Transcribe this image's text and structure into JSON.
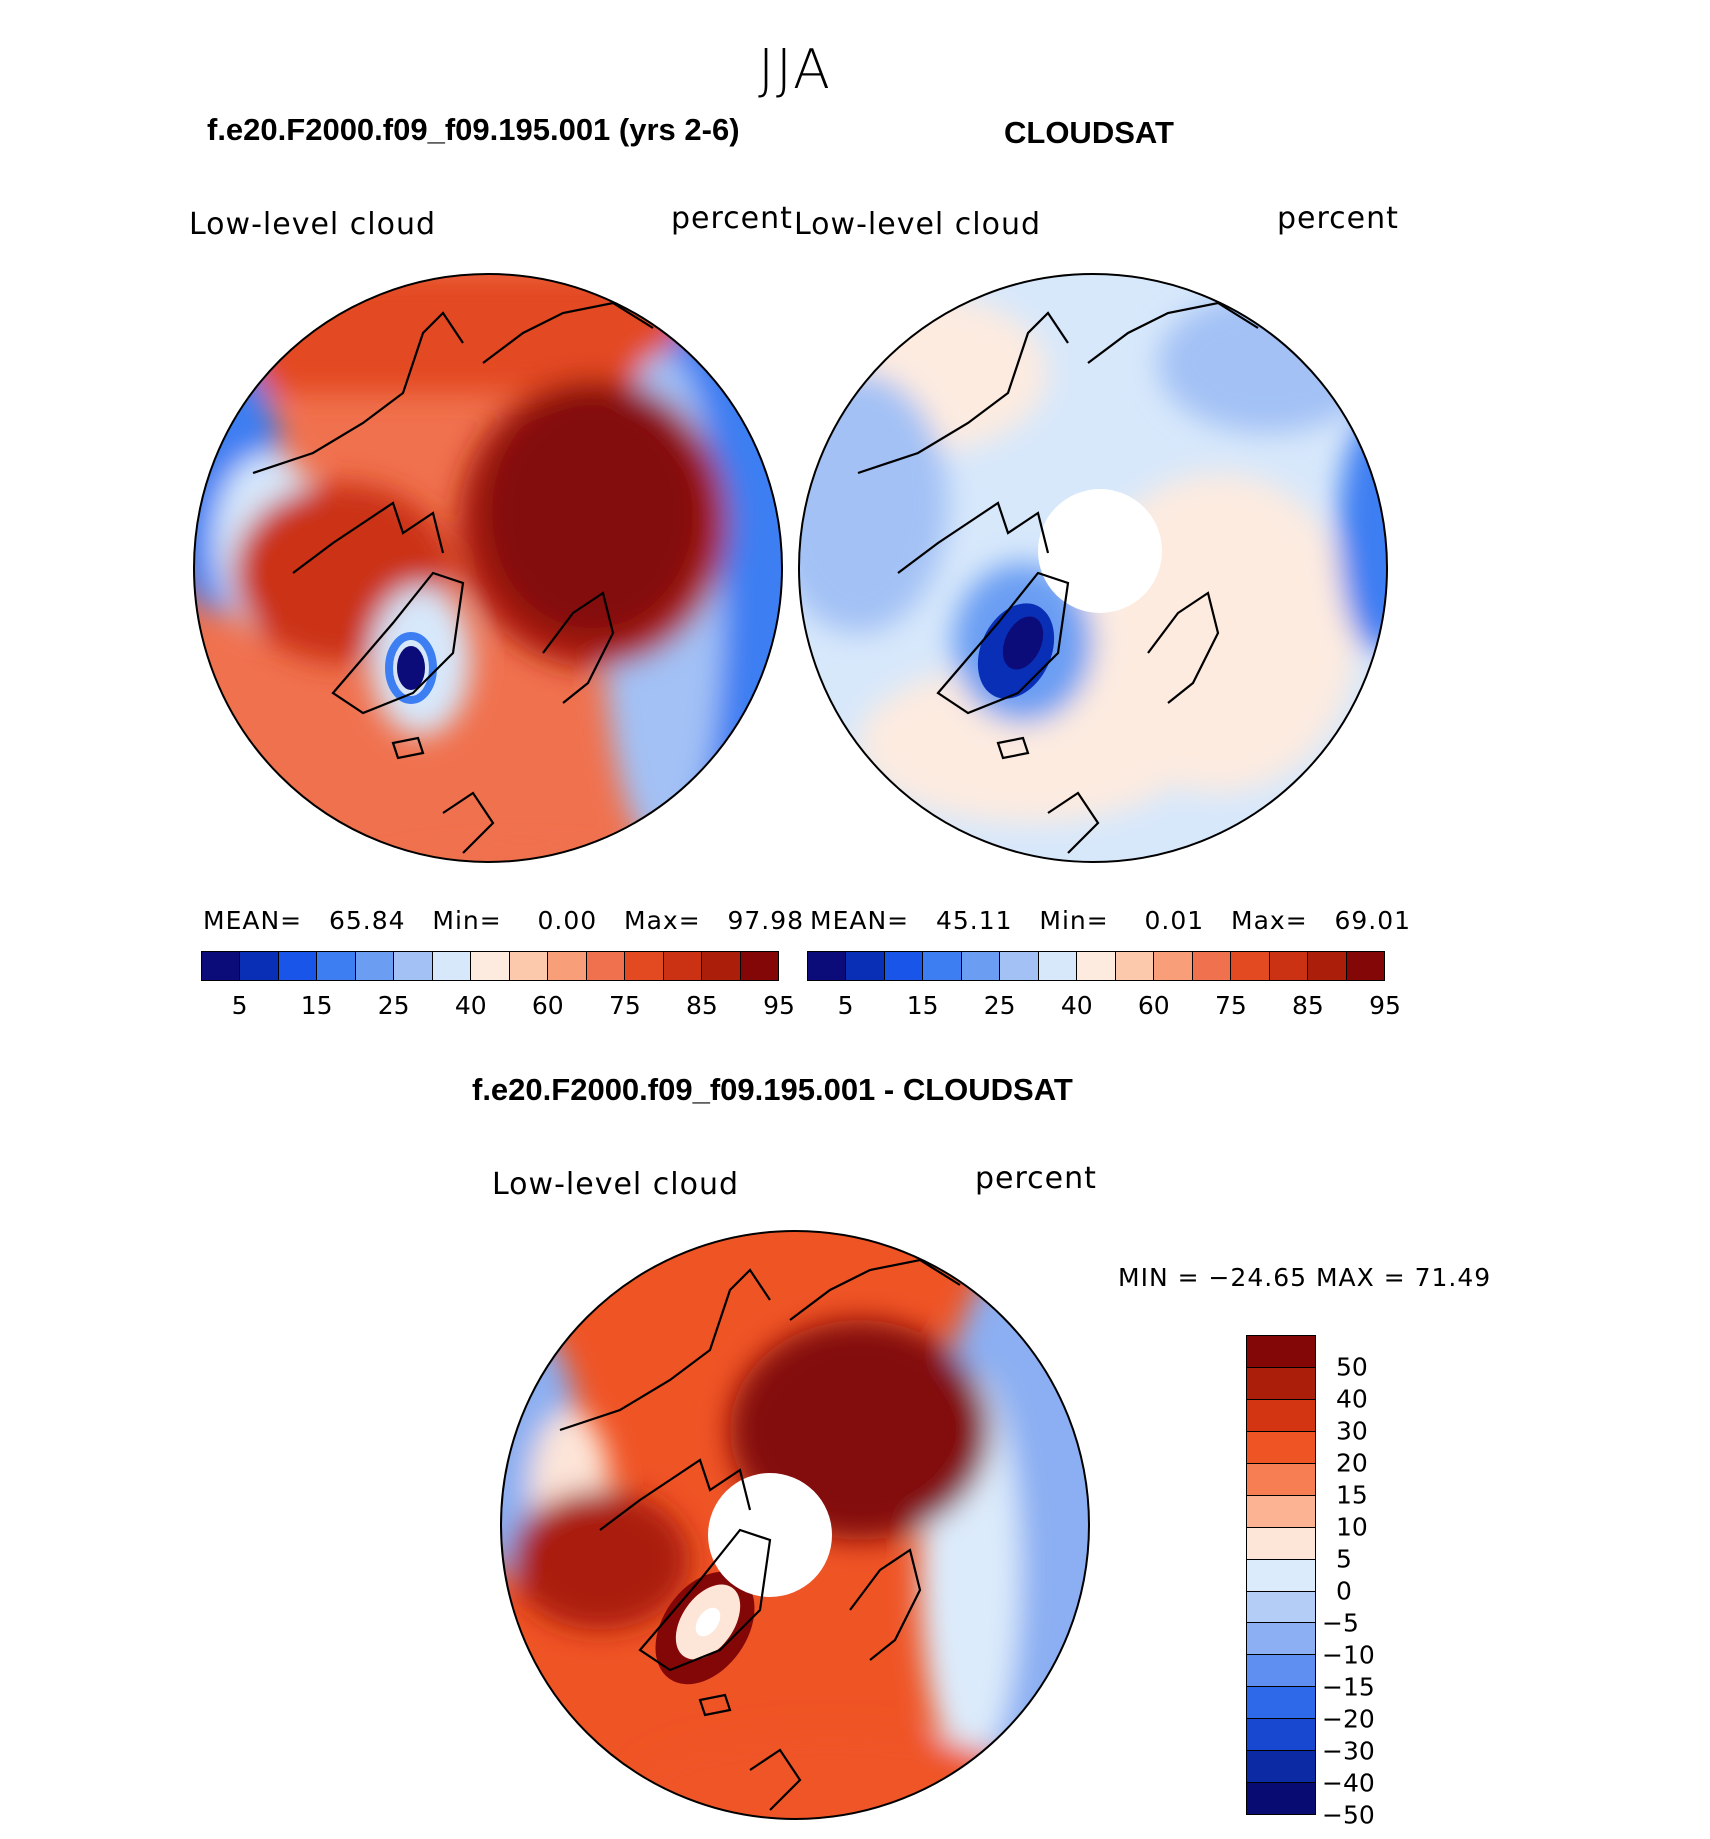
{
  "season": "JJA",
  "colors": {
    "abs_scale": [
      "#0b0b7a",
      "#0a2fb7",
      "#1855e8",
      "#3d7ef2",
      "#6b9ef3",
      "#a3c1f5",
      "#d7e8fb",
      "#fdebe0",
      "#fcc9ad",
      "#f89f7a",
      "#f0714e",
      "#e34a22",
      "#cb3213",
      "#aa1e0a",
      "#830707"
    ],
    "diff_scale": [
      "#830707",
      "#aa1e0a",
      "#d33412",
      "#ef5425",
      "#f77d52",
      "#fbb394",
      "#fde5d8",
      "#dcebfb",
      "#b3cdf6",
      "#8baff2",
      "#5f8ff0",
      "#2e69e9",
      "#1848cf",
      "#0c2aa3",
      "#080b72"
    ],
    "continent": "#000000"
  },
  "panels": [
    {
      "title": "f.e20.F2000.f09_f09.195.001 (yrs 2-6)",
      "variable": "Low-level cloud",
      "units": "percent",
      "stats": {
        "mean_label": "MEAN=",
        "mean": "65.84",
        "min_label": "Min=",
        "min": "0.00",
        "max_label": "Max=",
        "max": "97.98"
      },
      "colorbar_ticks": [
        "5",
        "15",
        "25",
        "40",
        "60",
        "75",
        "85",
        "95"
      ]
    },
    {
      "title": "CLOUDSAT",
      "variable": "Low-level cloud",
      "units": "percent",
      "stats": {
        "mean_label": "MEAN=",
        "mean": "45.11",
        "min_label": "Min=",
        "min": "0.01",
        "max_label": "Max=",
        "max": "69.01"
      },
      "colorbar_ticks": [
        "5",
        "15",
        "25",
        "40",
        "60",
        "75",
        "85",
        "95"
      ]
    },
    {
      "title": "f.e20.F2000.f09_f09.195.001 - CLOUDSAT",
      "variable": "Low-level cloud",
      "units": "percent",
      "stats_text": "MIN = −24.65 MAX =   71.49",
      "colorbar_ticks": [
        "50",
        "40",
        "30",
        "20",
        "15",
        "10",
        "5",
        "0",
        "−5",
        "−10",
        "−15",
        "−20",
        "−30",
        "−40",
        "−50"
      ]
    }
  ],
  "chart_data": [
    {
      "type": "heatmap",
      "projection": "north polar stereographic",
      "title": "f.e20.F2000.f09_f09.195.001 (yrs 2-6)",
      "variable": "Low-level cloud",
      "units": "percent",
      "levels": [
        5,
        10,
        15,
        20,
        25,
        30,
        40,
        50,
        60,
        70,
        75,
        80,
        85,
        90,
        95
      ],
      "mean": 65.84,
      "min": 0.0,
      "max": 97.98
    },
    {
      "type": "heatmap",
      "projection": "north polar stereographic",
      "title": "CLOUDSAT",
      "variable": "Low-level cloud",
      "units": "percent",
      "levels": [
        5,
        10,
        15,
        20,
        25,
        30,
        40,
        50,
        60,
        70,
        75,
        80,
        85,
        90,
        95
      ],
      "mean": 45.11,
      "min": 0.01,
      "max": 69.01
    },
    {
      "type": "heatmap",
      "projection": "north polar stereographic",
      "title": "f.e20.F2000.f09_f09.195.001 - CLOUDSAT",
      "variable": "Low-level cloud",
      "units": "percent",
      "levels": [
        -50,
        -40,
        -30,
        -20,
        -15,
        -10,
        -5,
        0,
        5,
        10,
        15,
        20,
        30,
        40,
        50
      ],
      "min": -24.65,
      "max": 71.49
    }
  ]
}
